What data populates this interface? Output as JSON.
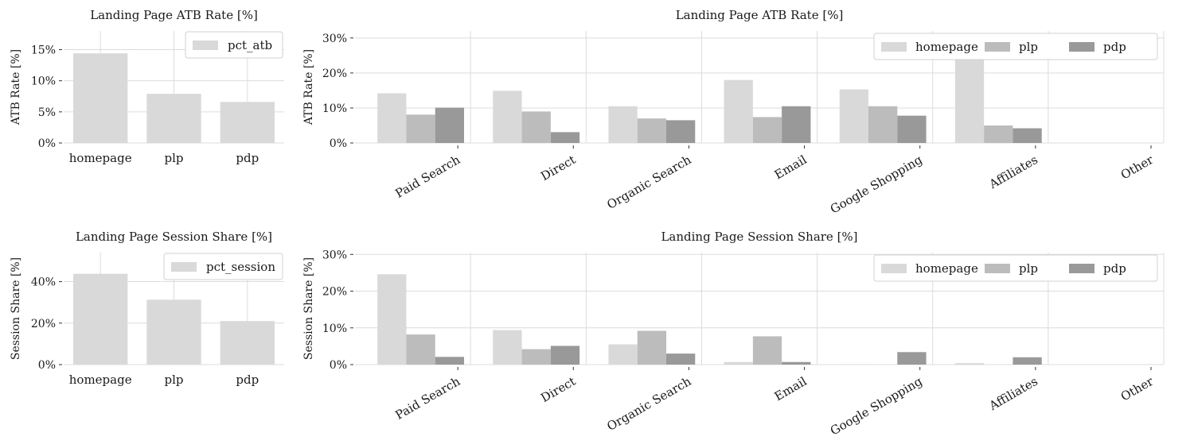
{
  "colors": {
    "homepage": "#d9d9d9",
    "plp": "#bcbcbc",
    "pdp": "#999999"
  },
  "chart_data": [
    {
      "type": "bar",
      "title": "Landing Page ATB Rate [%]",
      "ylabel": "ATB Rate [%]",
      "categories": [
        "homepage",
        "plp",
        "pdp"
      ],
      "series": [
        {
          "name": "pct_atb",
          "values": [
            14.4,
            7.9,
            6.6
          ]
        }
      ],
      "yticks": [
        "0%",
        "5%",
        "10%",
        "15%"
      ],
      "ytick_values": [
        0,
        5,
        10,
        15
      ],
      "ylim": [
        0,
        18
      ],
      "legend": "top-right",
      "grid": true
    },
    {
      "type": "bar",
      "title": "Landing Page ATB Rate [%]",
      "ylabel": "ATB Rate [%]",
      "categories": [
        "Paid Search",
        "Direct",
        "Organic Search",
        "Email",
        "Google Shopping",
        "Affiliates",
        "Other"
      ],
      "series": [
        {
          "name": "homepage",
          "values": [
            14.2,
            14.9,
            10.5,
            18.0,
            15.3,
            25.8,
            0
          ]
        },
        {
          "name": "plp",
          "values": [
            8.1,
            9.0,
            7.0,
            7.4,
            10.5,
            5.0,
            0
          ]
        },
        {
          "name": "pdp",
          "values": [
            10.1,
            3.1,
            6.5,
            10.5,
            7.8,
            4.2,
            0
          ]
        }
      ],
      "yticks": [
        "0%",
        "10%",
        "20%",
        "30%"
      ],
      "ytick_values": [
        0,
        10,
        20,
        30
      ],
      "ylim": [
        0,
        32
      ],
      "legend": "top-right",
      "grid": true
    },
    {
      "type": "bar",
      "title": "Landing Page Session Share [%]",
      "ylabel": "Session Share [%]",
      "categories": [
        "homepage",
        "plp",
        "pdp"
      ],
      "series": [
        {
          "name": "pct_session",
          "values": [
            43.8,
            31.3,
            21.0
          ]
        }
      ],
      "yticks": [
        "0%",
        "20%",
        "40%"
      ],
      "ytick_values": [
        0,
        20,
        40
      ],
      "ylim": [
        0,
        54
      ],
      "legend": "top-right",
      "grid": true
    },
    {
      "type": "bar",
      "title": "Landing Page Session Share [%]",
      "ylabel": "Session Share [%]",
      "categories": [
        "Paid Search",
        "Direct",
        "Organic Search",
        "Email",
        "Google Shopping",
        "Affiliates",
        "Other"
      ],
      "series": [
        {
          "name": "homepage",
          "values": [
            24.6,
            9.4,
            5.5,
            0.7,
            0.1,
            0.4,
            0
          ]
        },
        {
          "name": "plp",
          "values": [
            8.2,
            4.2,
            9.2,
            7.7,
            0,
            0,
            0
          ]
        },
        {
          "name": "pdp",
          "values": [
            2.1,
            5.1,
            3.0,
            0.7,
            3.4,
            2.0,
            0
          ]
        }
      ],
      "yticks": [
        "0%",
        "10%",
        "20%",
        "30%"
      ],
      "ytick_values": [
        0,
        10,
        20,
        30
      ],
      "ylim": [
        0,
        30.5
      ],
      "legend": "top-right",
      "grid": true
    }
  ]
}
